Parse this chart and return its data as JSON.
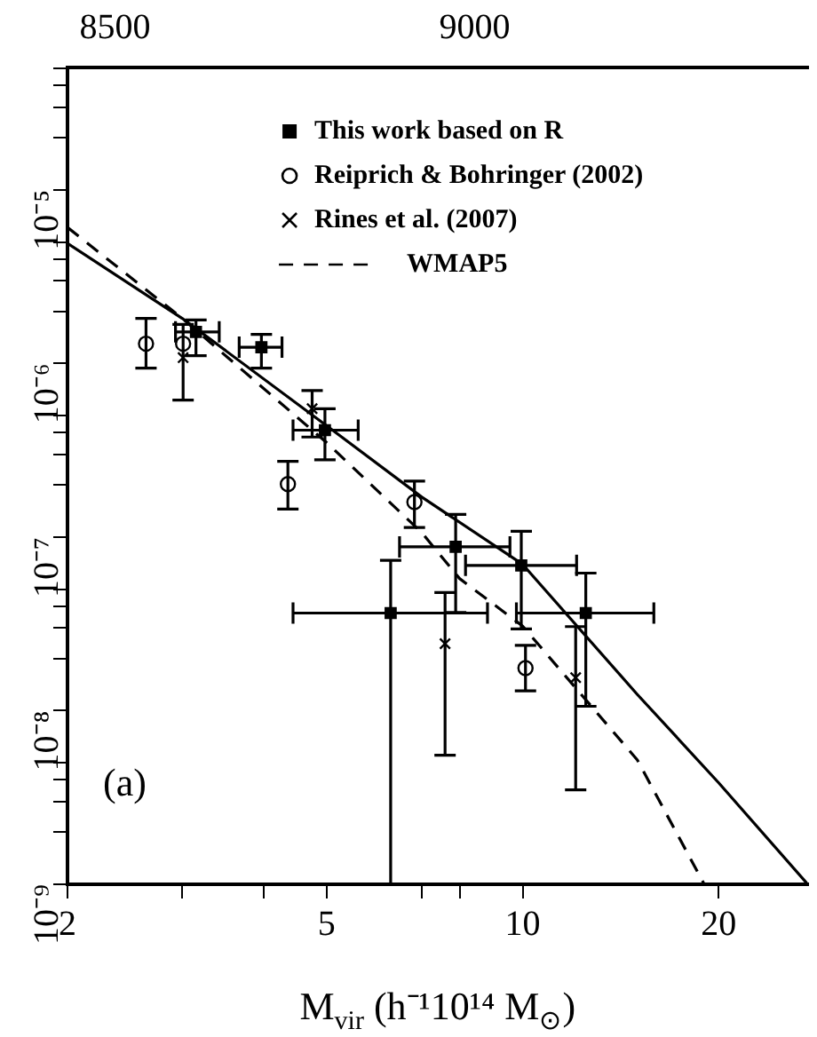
{
  "chart_data": {
    "type": "scatter",
    "xlabel": "M$_{vir}$ (h⁻¹10¹⁴ M$_{⊙}$)",
    "log": "xy",
    "legend": "top right",
    "grid": false,
    "xlim": [
      2,
      27.4
    ],
    "xticks": [
      2,
      {
        "value": 3,
        "label": null
      },
      {
        "value": 4,
        "label": null
      },
      5,
      {
        "value": 7,
        "label": null
      },
      {
        "value": 8,
        "label": null
      },
      10,
      20
    ],
    "ylim": [
      1e-09,
      5.07e-05
    ],
    "yticks": [
      {
        "value": 1e-09,
        "label": "10⁻⁹"
      },
      {
        "value": 2e-09,
        "label": null
      },
      {
        "value": 3e-09,
        "label": null
      },
      {
        "value": 4e-09,
        "label": null
      },
      {
        "value": 5e-09,
        "label": null
      },
      {
        "value": 1e-08,
        "label": "10⁻⁸"
      },
      {
        "value": 2e-08,
        "label": null
      },
      {
        "value": 3e-08,
        "label": null
      },
      {
        "value": 4e-08,
        "label": null
      },
      {
        "value": 5e-08,
        "label": null
      },
      {
        "value": 1e-07,
        "label": "10⁻⁷"
      },
      {
        "value": 2e-07,
        "label": null
      },
      {
        "value": 3e-07,
        "label": null
      },
      {
        "value": 4e-07,
        "label": null
      },
      {
        "value": 5e-07,
        "label": null
      },
      {
        "value": 1e-06,
        "label": "10⁻⁶"
      },
      {
        "value": 2e-06,
        "label": null
      },
      {
        "value": 3e-06,
        "label": null
      },
      {
        "value": 4e-06,
        "label": null
      },
      {
        "value": 5e-06,
        "label": null
      },
      {
        "value": 1e-05,
        "label": "10⁻⁵"
      },
      {
        "value": 2e-05,
        "label": null
      },
      {
        "value": 3e-05,
        "label": null
      },
      {
        "value": 4e-05,
        "label": null
      },
      {
        "value": 5e-05,
        "label": null
      }
    ],
    "x2lim": [
      8434,
      9463
    ],
    "x2ticks": [
      8500,
      9000
    ],
    "annotations": [
      "(a)"
    ],
    "series": [
      {
        "name": "This work based on R",
        "marker": "square",
        "color": "#000000",
        "x": [
          3.15,
          3.97,
          4.97,
          7.89,
          9.95,
          12.5,
          6.27
        ],
        "values": [
          1.52e-06,
          1.24e-06,
          4.13e-07,
          8.79e-08,
          6.87e-08,
          3.65e-08,
          3.65e-08
        ],
        "errors": [
          [
            1.11e-06,
            1.78e-06
          ],
          [
            9.4e-07,
            1.47e-06
          ],
          [
            2.79e-07,
            5.49e-07
          ],
          [
            3.68e-08,
            1.35e-07
          ],
          [
            2.96e-08,
            1.08e-07
          ],
          [
            1.06e-08,
            6.2e-08
          ],
          [
            1e-09,
            7.35e-08
          ]
        ],
        "xerrors": [
          [
            2.93,
            3.42
          ],
          [
            3.67,
            4.27
          ],
          [
            4.44,
            5.59
          ],
          [
            6.47,
            9.56
          ],
          [
            8.17,
            12.1
          ],
          [
            9.78,
            15.9
          ],
          [
            4.44,
            8.83
          ]
        ]
      },
      {
        "name": "Reiprich & Bohringer (2002)",
        "marker": "circle",
        "color": "#000000",
        "x": [
          2.64,
          3.01,
          4.36,
          6.82,
          10.1
        ],
        "values": [
          1.3e-06,
          1.3e-06,
          2.02e-07,
          1.59e-07,
          1.76e-08
        ],
        "errors": [
          [
            9.4e-07,
            1.82e-06
          ],
          null,
          [
            1.45e-07,
            2.73e-07
          ],
          [
            1.135e-07,
            2.1e-07
          ],
          [
            1.3e-08,
            2.38e-08
          ]
        ]
      },
      {
        "name": "Rines et al. (2007)",
        "marker": "cross",
        "color": "#000000",
        "x": [
          3.01,
          4.75,
          7.6,
          12.06
        ],
        "values": [
          1.08e-06,
          5.49e-07,
          2.43e-08,
          1.55e-08
        ],
        "errors": [
          [
            6.15e-07,
            1.68e-06
          ],
          [
            3.77e-07,
            6.99e-07
          ],
          [
            5.54e-09,
            4.79e-08
          ],
          [
            3.5e-09,
            3.05e-08
          ]
        ]
      },
      {
        "name": "WMAP5",
        "type": "line",
        "marker": "none",
        "line_style": "dashed",
        "color": "#000000",
        "x": [
          2,
          3,
          5,
          7,
          8,
          10,
          15,
          19
        ],
        "values": [
          6.08e-06,
          1.82e-06,
          3.5e-07,
          1.06e-07,
          5.77e-08,
          3.07e-08,
          5.2e-09,
          1e-09
        ]
      },
      {
        "type": "line",
        "marker": "none",
        "line_style": "solid",
        "color": "#000000",
        "x": [
          2,
          3,
          5,
          7,
          10,
          15,
          20,
          27.4
        ],
        "values": [
          4.92e-06,
          1.82e-06,
          4.38e-07,
          1.7e-07,
          6.96e-08,
          1.24e-08,
          3.84e-09,
          1e-09
        ]
      }
    ]
  }
}
